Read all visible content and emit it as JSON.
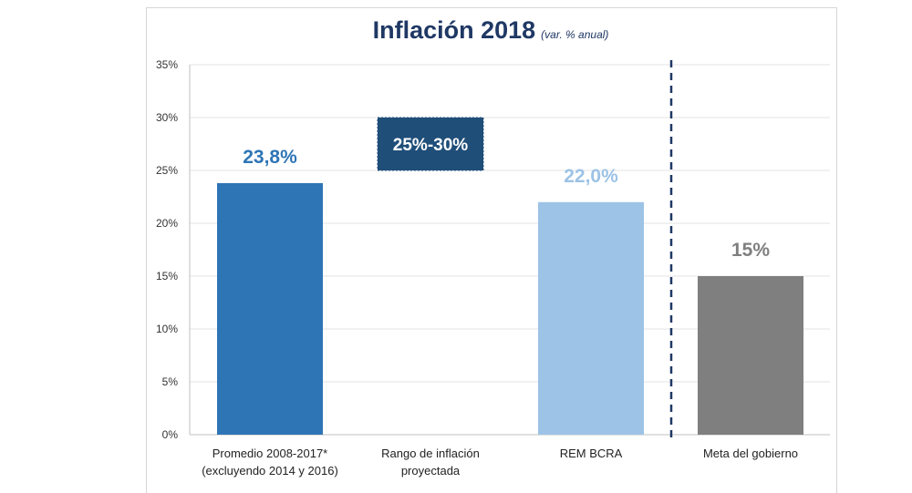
{
  "chart_data": {
    "type": "bar",
    "title": "Inflación 2018",
    "subtitle": "(var. % anual)",
    "categories": [
      [
        "Promedio 2008-2017*",
        "(excluyendo 2014 y 2016)"
      ],
      [
        "Rango de inflación",
        "proyectada"
      ],
      [
        "REM BCRA"
      ],
      [
        "Meta del gobierno"
      ]
    ],
    "bars": [
      {
        "category_index": 0,
        "value": 23.8,
        "label": "23,8%",
        "color": "#2e75b6",
        "label_color": "#2e75b6"
      },
      {
        "category_index": 1,
        "range": [
          25,
          30
        ],
        "label": "25%-30%",
        "color": "#1f4e79",
        "label_color": "#ffffff"
      },
      {
        "category_index": 2,
        "value": 22.0,
        "label": "22,0%",
        "color": "#9dc3e6",
        "label_color": "#9dc3e6"
      },
      {
        "category_index": 3,
        "value": 15,
        "label": "15%",
        "color": "#7f7f7f",
        "label_color": "#7f7f7f"
      }
    ],
    "yticks": [
      0,
      5,
      10,
      15,
      20,
      25,
      30,
      35
    ],
    "ytick_labels": [
      "0%",
      "5%",
      "10%",
      "15%",
      "20%",
      "25%",
      "30%",
      "35%"
    ],
    "ylim": [
      0,
      35
    ],
    "grid": true,
    "divider_after_category": 2
  }
}
